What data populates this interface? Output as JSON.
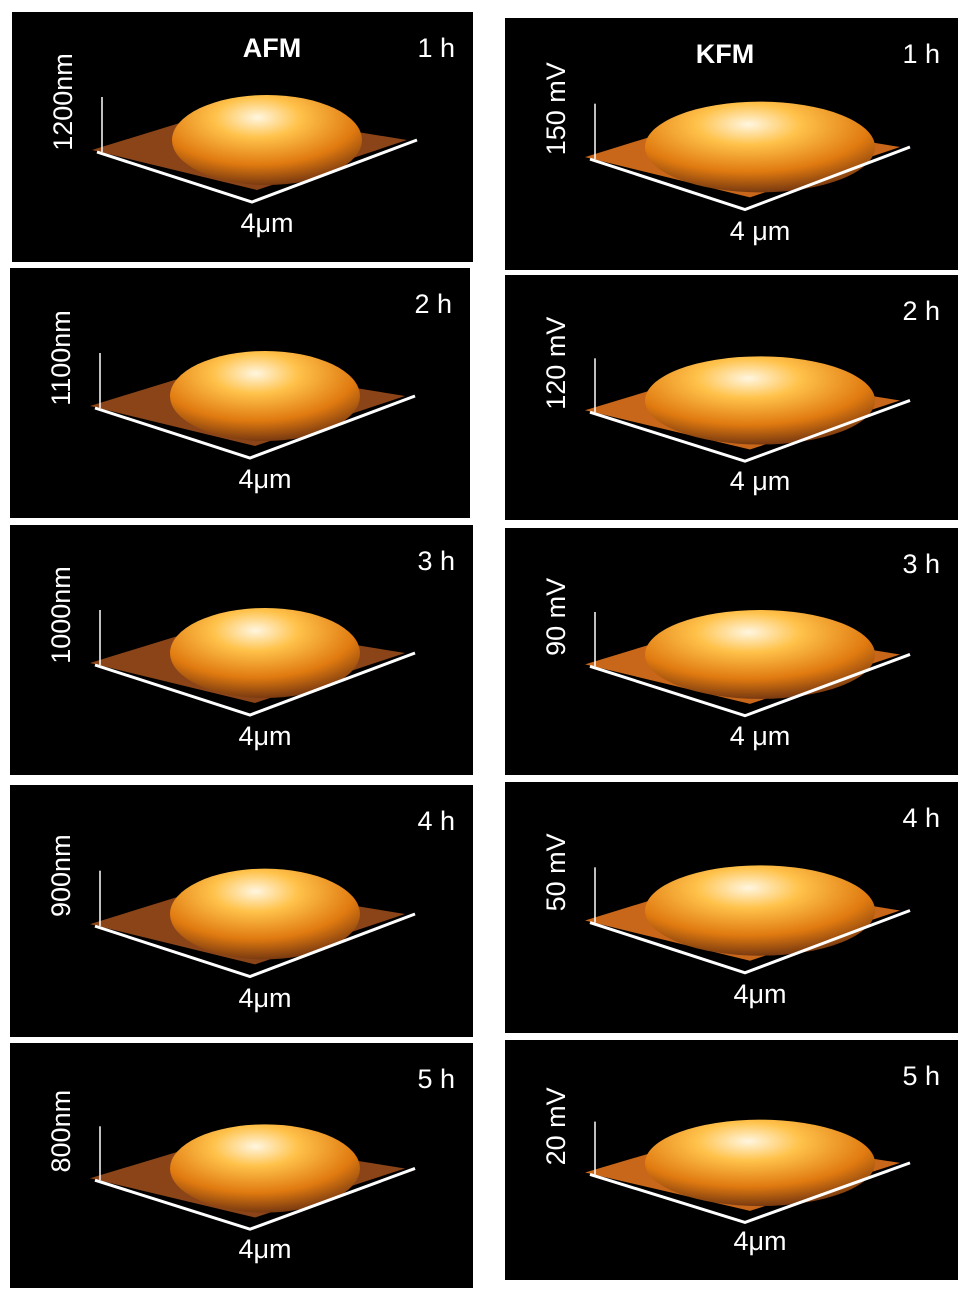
{
  "afm": {
    "header": "AFM",
    "panels": [
      {
        "time": "1 h",
        "z_scale": "1200nm",
        "x_scale": "4μm"
      },
      {
        "time": "2 h",
        "z_scale": "1100nm",
        "x_scale": "4μm"
      },
      {
        "time": "3 h",
        "z_scale": "1000nm",
        "x_scale": "4μm"
      },
      {
        "time": "4 h",
        "z_scale": "900nm",
        "x_scale": "4μm"
      },
      {
        "time": "5 h",
        "z_scale": "800nm",
        "x_scale": "4μm"
      }
    ]
  },
  "kfm": {
    "header": "KFM",
    "panels": [
      {
        "time": "1 h",
        "z_scale": "150 mV",
        "x_scale": "4 μm"
      },
      {
        "time": "2 h",
        "z_scale": "120 mV",
        "x_scale": "4 μm"
      },
      {
        "time": "3 h",
        "z_scale": "90 mV",
        "x_scale": "4 μm"
      },
      {
        "time": "4 h",
        "z_scale": "50 mV",
        "x_scale": "4μm"
      },
      {
        "time": "5 h",
        "z_scale": "20 mV",
        "x_scale": "4μm"
      }
    ]
  }
}
